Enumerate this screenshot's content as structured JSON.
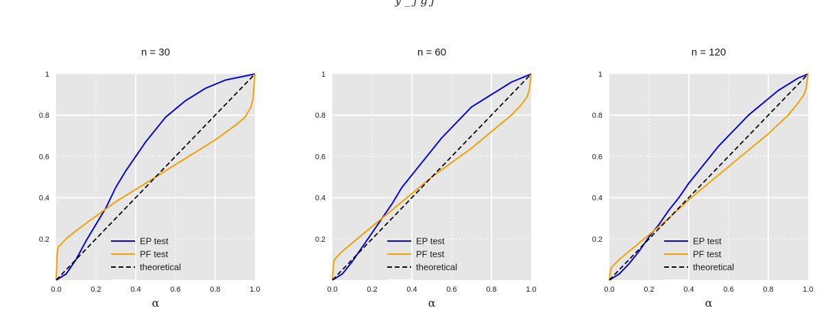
{
  "figure": {
    "cut_title": "y _ j g j"
  },
  "chart_data": [
    {
      "type": "line",
      "title": "n = 30",
      "xlabel": "α",
      "ylabel": "",
      "xlim": [
        0.0,
        1.0
      ],
      "ylim": [
        0.0,
        1.0
      ],
      "xticks": [
        "0.0",
        "0.2",
        "0.4",
        "0.6",
        "0.8",
        "1.0"
      ],
      "yticks": [
        "0.2",
        "0.4",
        "0.6",
        "0.8",
        "1"
      ],
      "grid": true,
      "legend_position": "lower-center",
      "series": [
        {
          "name": "EP test",
          "color": "#0000dd",
          "style": "solid",
          "x": [
            0.0,
            0.05,
            0.1,
            0.15,
            0.2,
            0.25,
            0.3,
            0.35,
            0.4,
            0.45,
            0.5,
            0.55,
            0.6,
            0.65,
            0.7,
            0.75,
            0.8,
            0.85,
            0.9,
            0.95,
            1.0
          ],
          "y": [
            0.0,
            0.03,
            0.1,
            0.19,
            0.27,
            0.35,
            0.45,
            0.53,
            0.6,
            0.67,
            0.73,
            0.79,
            0.83,
            0.87,
            0.9,
            0.93,
            0.95,
            0.97,
            0.98,
            0.99,
            1.0
          ]
        },
        {
          "name": "PF test",
          "color": "#f0a000",
          "style": "solid",
          "x": [
            0.0,
            0.005,
            0.01,
            0.05,
            0.1,
            0.2,
            0.3,
            0.4,
            0.5,
            0.6,
            0.7,
            0.8,
            0.9,
            0.95,
            0.98,
            0.99,
            1.0
          ],
          "y": [
            0.0,
            0.13,
            0.16,
            0.2,
            0.24,
            0.31,
            0.38,
            0.44,
            0.5,
            0.56,
            0.62,
            0.68,
            0.75,
            0.79,
            0.84,
            0.88,
            1.0
          ]
        },
        {
          "name": "theoretical",
          "color": "#000000",
          "style": "dashed",
          "x": [
            0.0,
            1.0
          ],
          "y": [
            0.0,
            1.0
          ]
        },
        {
          "name": "",
          "color": "#ffffff",
          "style": "solid",
          "x": [],
          "y": []
        }
      ]
    },
    {
      "type": "line",
      "title": "n = 60",
      "xlabel": "α",
      "ylabel": "",
      "xlim": [
        0.0,
        1.0
      ],
      "ylim": [
        0.0,
        1.0
      ],
      "xticks": [
        "0.0",
        "0.2",
        "0.4",
        "0.6",
        "0.8",
        "1.0"
      ],
      "yticks": [
        "0.2",
        "0.4",
        "0.6",
        "0.8",
        "1"
      ],
      "grid": true,
      "legend_position": "lower-center",
      "series": [
        {
          "name": "EP test",
          "color": "#0000dd",
          "style": "solid",
          "x": [
            0.0,
            0.05,
            0.1,
            0.15,
            0.2,
            0.25,
            0.3,
            0.35,
            0.4,
            0.45,
            0.5,
            0.55,
            0.6,
            0.65,
            0.7,
            0.75,
            0.8,
            0.85,
            0.9,
            0.95,
            1.0
          ],
          "y": [
            0.0,
            0.03,
            0.09,
            0.16,
            0.23,
            0.3,
            0.37,
            0.45,
            0.51,
            0.57,
            0.63,
            0.69,
            0.74,
            0.79,
            0.84,
            0.87,
            0.9,
            0.93,
            0.96,
            0.98,
            1.0
          ]
        },
        {
          "name": "PF test",
          "color": "#f0a000",
          "style": "solid",
          "x": [
            0.0,
            0.005,
            0.01,
            0.05,
            0.1,
            0.2,
            0.3,
            0.4,
            0.5,
            0.6,
            0.7,
            0.8,
            0.9,
            0.95,
            0.98,
            0.99,
            1.0
          ],
          "y": [
            0.0,
            0.07,
            0.1,
            0.14,
            0.18,
            0.26,
            0.34,
            0.42,
            0.5,
            0.57,
            0.64,
            0.72,
            0.8,
            0.85,
            0.89,
            0.92,
            1.0
          ]
        },
        {
          "name": "theoretical",
          "color": "#000000",
          "style": "dashed",
          "x": [
            0.0,
            1.0
          ],
          "y": [
            0.0,
            1.0
          ]
        },
        {
          "name": "",
          "color": "#ffffff",
          "style": "solid",
          "x": [],
          "y": []
        }
      ]
    },
    {
      "type": "line",
      "title": "n = 120",
      "xlabel": "α",
      "ylabel": "",
      "xlim": [
        0.0,
        1.0
      ],
      "ylim": [
        0.0,
        1.0
      ],
      "xticks": [
        "0.0",
        "0.2",
        "0.4",
        "0.6",
        "0.8",
        "1.0"
      ],
      "yticks": [
        "0.2",
        "0.4",
        "0.6",
        "0.8",
        "1"
      ],
      "grid": true,
      "legend_position": "lower-center",
      "series": [
        {
          "name": "EP test",
          "color": "#0000dd",
          "style": "solid",
          "x": [
            0.0,
            0.05,
            0.1,
            0.15,
            0.2,
            0.25,
            0.3,
            0.35,
            0.4,
            0.45,
            0.5,
            0.55,
            0.6,
            0.65,
            0.7,
            0.75,
            0.8,
            0.85,
            0.9,
            0.95,
            1.0
          ],
          "y": [
            0.0,
            0.03,
            0.08,
            0.14,
            0.21,
            0.27,
            0.34,
            0.4,
            0.47,
            0.53,
            0.59,
            0.65,
            0.7,
            0.75,
            0.8,
            0.84,
            0.88,
            0.92,
            0.95,
            0.98,
            1.0
          ]
        },
        {
          "name": "PF test",
          "color": "#f0a000",
          "style": "solid",
          "x": [
            0.0,
            0.005,
            0.01,
            0.05,
            0.1,
            0.2,
            0.3,
            0.4,
            0.5,
            0.6,
            0.7,
            0.8,
            0.9,
            0.95,
            0.98,
            0.99,
            1.0
          ],
          "y": [
            0.0,
            0.04,
            0.06,
            0.1,
            0.14,
            0.22,
            0.3,
            0.39,
            0.47,
            0.55,
            0.63,
            0.71,
            0.8,
            0.86,
            0.9,
            0.93,
            1.0
          ]
        },
        {
          "name": "theoretical",
          "color": "#000000",
          "style": "dashed",
          "x": [
            0.0,
            1.0
          ],
          "y": [
            0.0,
            1.0
          ]
        },
        {
          "name": "",
          "color": "#ffffff",
          "style": "solid",
          "x": [],
          "y": []
        }
      ]
    }
  ]
}
